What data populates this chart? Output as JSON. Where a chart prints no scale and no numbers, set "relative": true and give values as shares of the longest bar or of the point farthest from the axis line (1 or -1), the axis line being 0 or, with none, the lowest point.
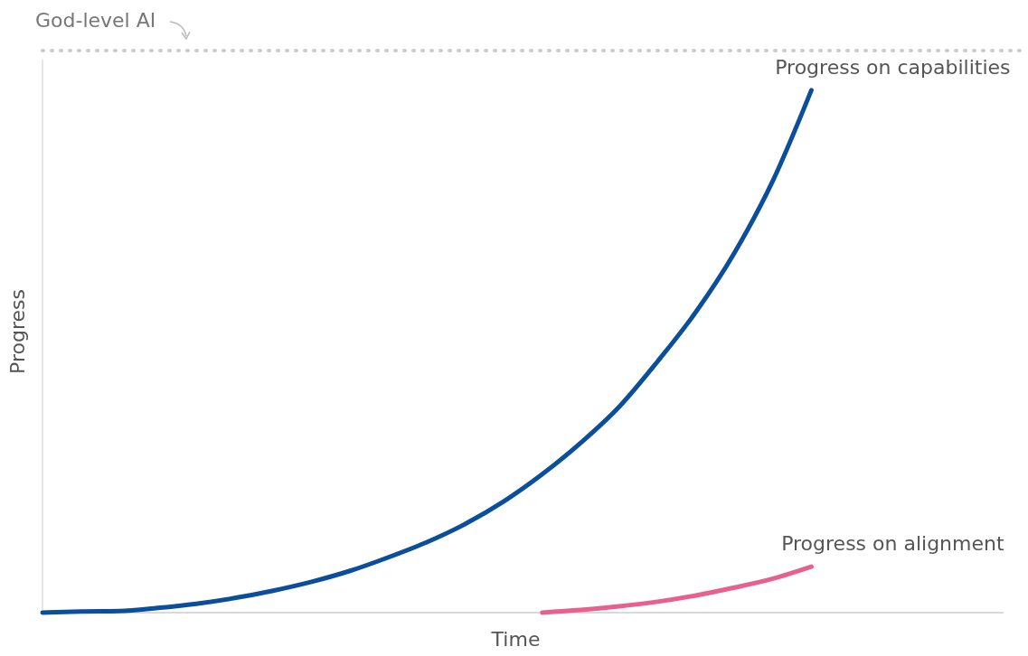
{
  "chart_data": {
    "type": "line",
    "relative": true,
    "xlabel": "Time",
    "ylabel": "Progress",
    "categories": [
      null,
      null,
      null,
      null,
      null,
      null,
      null,
      null,
      null,
      null,
      null,
      null,
      null,
      null,
      null,
      null,
      null,
      null,
      null,
      null,
      null,
      null,
      null,
      null,
      null,
      null
    ],
    "series": [
      {
        "name": "Progress on capabilities",
        "color": "#0b4f9c",
        "values": [
          0,
          0.002,
          0.003,
          0.009,
          0.017,
          0.028,
          0.042,
          0.059,
          0.08,
          0.106,
          0.135,
          0.17,
          0.213,
          0.265,
          0.325,
          0.394,
          0.481,
          0.576,
          0.689,
          0.827,
          1,
          null,
          null,
          null,
          null,
          null
        ]
      },
      {
        "name": "Progress on alignment",
        "color": "#e8608f",
        "values": [
          null,
          null,
          null,
          null,
          null,
          null,
          null,
          null,
          null,
          null,
          null,
          null,
          null,
          0,
          0.005,
          0.012,
          0.021,
          0.033,
          0.048,
          0.065,
          0.088,
          null,
          null,
          null,
          null,
          null
        ]
      }
    ],
    "ref_lines": [
      {
        "axis": "y",
        "value": 1.076,
        "label": "God-level AI",
        "color": "#cccccc",
        "line_style": "dotted"
      }
    ],
    "grid": false,
    "legend": false,
    "marker": "none",
    "line_style": "solid"
  }
}
